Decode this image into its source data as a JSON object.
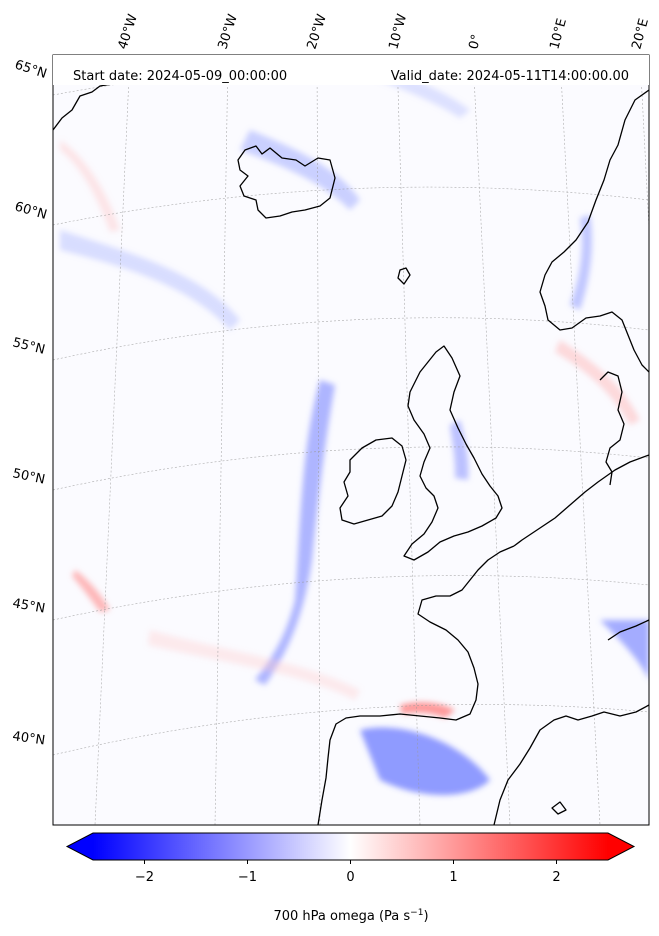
{
  "map": {
    "start_date_text": "Start date: 2024-05-09_00:00:00",
    "valid_date_text": "Valid_date: 2024-05-11T14:00:00.00",
    "projection": "stereographic",
    "gridlines": true,
    "longitude_labels": [
      "40°W",
      "30°W",
      "20°W",
      "10°W",
      "0°",
      "10°E",
      "20°E"
    ],
    "latitude_labels": [
      "65°N",
      "60°N",
      "55°N",
      "50°N",
      "45°N",
      "40°N"
    ],
    "field": "700 hPa omega",
    "regions": [
      "Iceland",
      "Faroe Islands",
      "Scandinavia",
      "Denmark",
      "Great Britain",
      "Ireland",
      "France",
      "Iberian Peninsula"
    ]
  },
  "colorbar": {
    "label": "700 hPa omega (Pa s",
    "label_exponent": "−1",
    "label_close": ")",
    "min": -2.5,
    "max": 2.5,
    "extend": "both",
    "ticks": [
      "−2",
      "−1",
      "0",
      "1",
      "2"
    ],
    "tick_values": [
      -2,
      -1,
      0,
      1,
      2
    ],
    "colormap": "bwr",
    "colors": {
      "negative": "#0000ff",
      "zero": "#ffffff",
      "positive": "#ff0000"
    }
  }
}
